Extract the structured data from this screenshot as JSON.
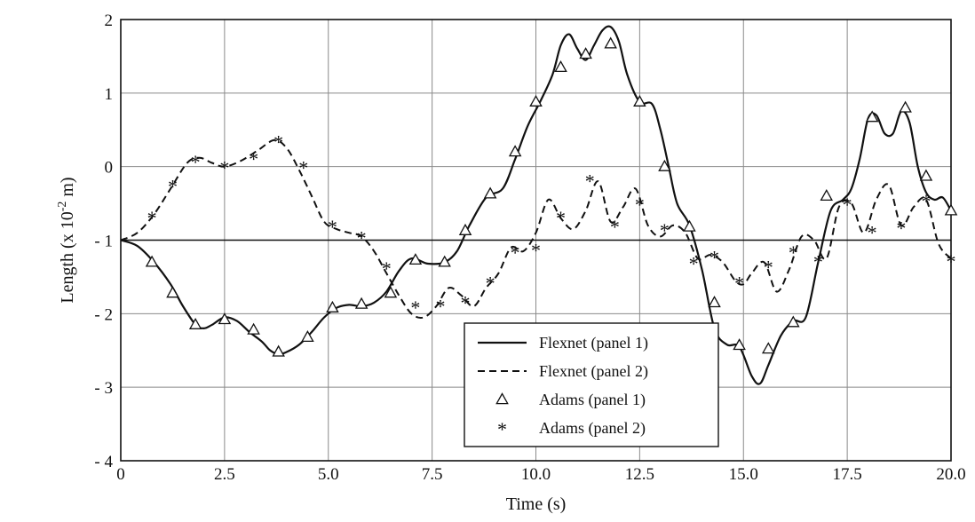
{
  "chart_data": {
    "type": "line",
    "title": "",
    "xlabel": "Time (s)",
    "ylabel_parts": {
      "prefix": "Length (x 10",
      "exponent": "-2",
      "suffix": " m)"
    },
    "xlim": [
      0,
      20
    ],
    "ylim": [
      -4,
      2
    ],
    "x_ticks": [
      0,
      2.5,
      5,
      7.5,
      10,
      12.5,
      15,
      17.5,
      20
    ],
    "x_tick_labels": [
      "0",
      "2.5",
      "5.0",
      "7.5",
      "10.0",
      "12.5",
      "15.0",
      "17.5",
      "20.0"
    ],
    "y_ticks": [
      2,
      1,
      0,
      -1,
      -2,
      -3,
      -4
    ],
    "y_tick_labels": [
      "2",
      "1",
      "0",
      "- 1",
      "- 2",
      "- 3",
      "- 4"
    ],
    "grid": true,
    "reference_line_y": -1,
    "legend_position": "bottom-center",
    "series": [
      {
        "name": "Flexnet (panel 1)",
        "style": "solid",
        "x": [
          0,
          0.4,
          0.8,
          1.2,
          1.5,
          1.8,
          2.0,
          2.2,
          2.5,
          2.8,
          3.1,
          3.4,
          3.6,
          3.8,
          4.0,
          4.3,
          4.6,
          4.9,
          5.2,
          5.5,
          5.8,
          6.1,
          6.4,
          6.7,
          7.0,
          7.4,
          7.8,
          8.1,
          8.4,
          8.8,
          9.2,
          9.5,
          9.8,
          10.1,
          10.4,
          10.6,
          10.8,
          11.0,
          11.2,
          11.4,
          11.6,
          11.8,
          12.0,
          12.2,
          12.5,
          12.8,
          13.0,
          13.2,
          13.4,
          13.7,
          14.0,
          14.3,
          14.6,
          14.9,
          15.2,
          15.4,
          15.6,
          15.9,
          16.2,
          16.5,
          16.8,
          17.1,
          17.4,
          17.6,
          17.8,
          18.0,
          18.2,
          18.4,
          18.6,
          18.8,
          19.0,
          19.2,
          19.4,
          19.6,
          19.8,
          20.0
        ],
        "values": [
          -1.0,
          -1.08,
          -1.3,
          -1.6,
          -1.9,
          -2.15,
          -2.2,
          -2.15,
          -2.05,
          -2.1,
          -2.25,
          -2.38,
          -2.5,
          -2.55,
          -2.52,
          -2.42,
          -2.25,
          -2.05,
          -1.92,
          -1.88,
          -1.9,
          -1.85,
          -1.7,
          -1.42,
          -1.25,
          -1.32,
          -1.3,
          -1.15,
          -0.8,
          -0.42,
          -0.3,
          0.1,
          0.55,
          0.88,
          1.25,
          1.65,
          1.8,
          1.6,
          1.45,
          1.65,
          1.85,
          1.9,
          1.7,
          1.25,
          0.88,
          0.85,
          0.5,
          0.0,
          -0.5,
          -0.8,
          -1.4,
          -2.2,
          -2.42,
          -2.45,
          -2.85,
          -2.95,
          -2.7,
          -2.3,
          -2.1,
          -2.05,
          -1.3,
          -0.6,
          -0.45,
          -0.3,
          0.1,
          0.65,
          0.7,
          0.45,
          0.45,
          0.75,
          0.6,
          0.0,
          -0.35,
          -0.45,
          -0.42,
          -0.6
        ]
      },
      {
        "name": "Flexnet (panel 2)",
        "style": "dashed",
        "x": [
          0,
          0.4,
          0.8,
          1.2,
          1.6,
          1.9,
          2.2,
          2.5,
          2.9,
          3.3,
          3.7,
          4.0,
          4.3,
          4.6,
          4.9,
          5.2,
          5.5,
          5.8,
          6.1,
          6.4,
          6.7,
          7.0,
          7.3,
          7.6,
          7.9,
          8.2,
          8.5,
          8.8,
          9.1,
          9.4,
          9.7,
          10.0,
          10.3,
          10.6,
          10.9,
          11.2,
          11.5,
          11.8,
          12.1,
          12.4,
          12.7,
          13.0,
          13.3,
          13.6,
          13.9,
          14.2,
          14.5,
          14.8,
          15.0,
          15.2,
          15.5,
          15.8,
          16.1,
          16.4,
          16.7,
          17.0,
          17.3,
          17.6,
          17.9,
          18.2,
          18.5,
          18.8,
          19.1,
          19.4,
          19.7,
          20.0
        ],
        "values": [
          -1.0,
          -0.9,
          -0.65,
          -0.3,
          0.05,
          0.12,
          0.05,
          0.0,
          0.08,
          0.22,
          0.36,
          0.25,
          -0.05,
          -0.4,
          -0.75,
          -0.85,
          -0.9,
          -0.95,
          -1.15,
          -1.45,
          -1.75,
          -2.0,
          -2.05,
          -1.9,
          -1.65,
          -1.75,
          -1.9,
          -1.65,
          -1.45,
          -1.1,
          -1.15,
          -0.9,
          -0.45,
          -0.7,
          -0.85,
          -0.6,
          -0.2,
          -0.75,
          -0.55,
          -0.3,
          -0.8,
          -0.95,
          -0.8,
          -0.9,
          -1.25,
          -1.2,
          -1.3,
          -1.55,
          -1.6,
          -1.45,
          -1.3,
          -1.7,
          -1.4,
          -0.95,
          -1.0,
          -1.25,
          -0.55,
          -0.5,
          -0.9,
          -0.45,
          -0.25,
          -0.8,
          -0.55,
          -0.45,
          -1.05,
          -1.25
        ]
      },
      {
        "name": "Adams (panel 1)",
        "style": "triangle-markers",
        "x": [
          0.75,
          1.25,
          1.8,
          2.5,
          3.2,
          3.8,
          4.5,
          5.1,
          5.8,
          6.5,
          7.1,
          7.8,
          8.3,
          8.9,
          9.5,
          10.0,
          10.6,
          11.2,
          11.8,
          12.5,
          13.1,
          13.7,
          14.3,
          14.9,
          15.6,
          16.2,
          17.0,
          18.1,
          18.9,
          19.4,
          20.0
        ],
        "values": [
          -1.3,
          -1.72,
          -2.15,
          -2.08,
          -2.22,
          -2.52,
          -2.32,
          -1.92,
          -1.87,
          -1.72,
          -1.27,
          -1.3,
          -0.87,
          -0.37,
          0.2,
          0.88,
          1.35,
          1.53,
          1.67,
          0.88,
          0.0,
          -0.82,
          -1.85,
          -2.43,
          -2.48,
          -2.12,
          -0.4,
          0.67,
          0.8,
          -0.13,
          -0.6
        ]
      },
      {
        "name": "Adams (panel 2)",
        "style": "star-markers",
        "x": [
          0.75,
          1.25,
          1.8,
          2.5,
          3.2,
          3.8,
          4.4,
          5.1,
          5.8,
          6.4,
          7.1,
          7.7,
          8.3,
          8.9,
          9.5,
          10.0,
          10.6,
          11.3,
          11.9,
          12.5,
          13.1,
          13.8,
          14.3,
          14.9,
          15.6,
          16.2,
          16.8,
          17.5,
          18.1,
          18.8,
          19.4,
          20.0
        ],
        "values": [
          -0.68,
          -0.25,
          0.08,
          0.0,
          0.12,
          0.35,
          0.0,
          -0.8,
          -0.95,
          -1.37,
          -1.9,
          -1.88,
          -1.83,
          -1.57,
          -1.15,
          -1.12,
          -0.68,
          -0.18,
          -0.8,
          -0.5,
          -0.85,
          -1.3,
          -1.22,
          -1.57,
          -1.35,
          -1.15,
          -1.28,
          -0.5,
          -0.88,
          -0.82,
          -0.45,
          -1.27
        ]
      }
    ]
  }
}
